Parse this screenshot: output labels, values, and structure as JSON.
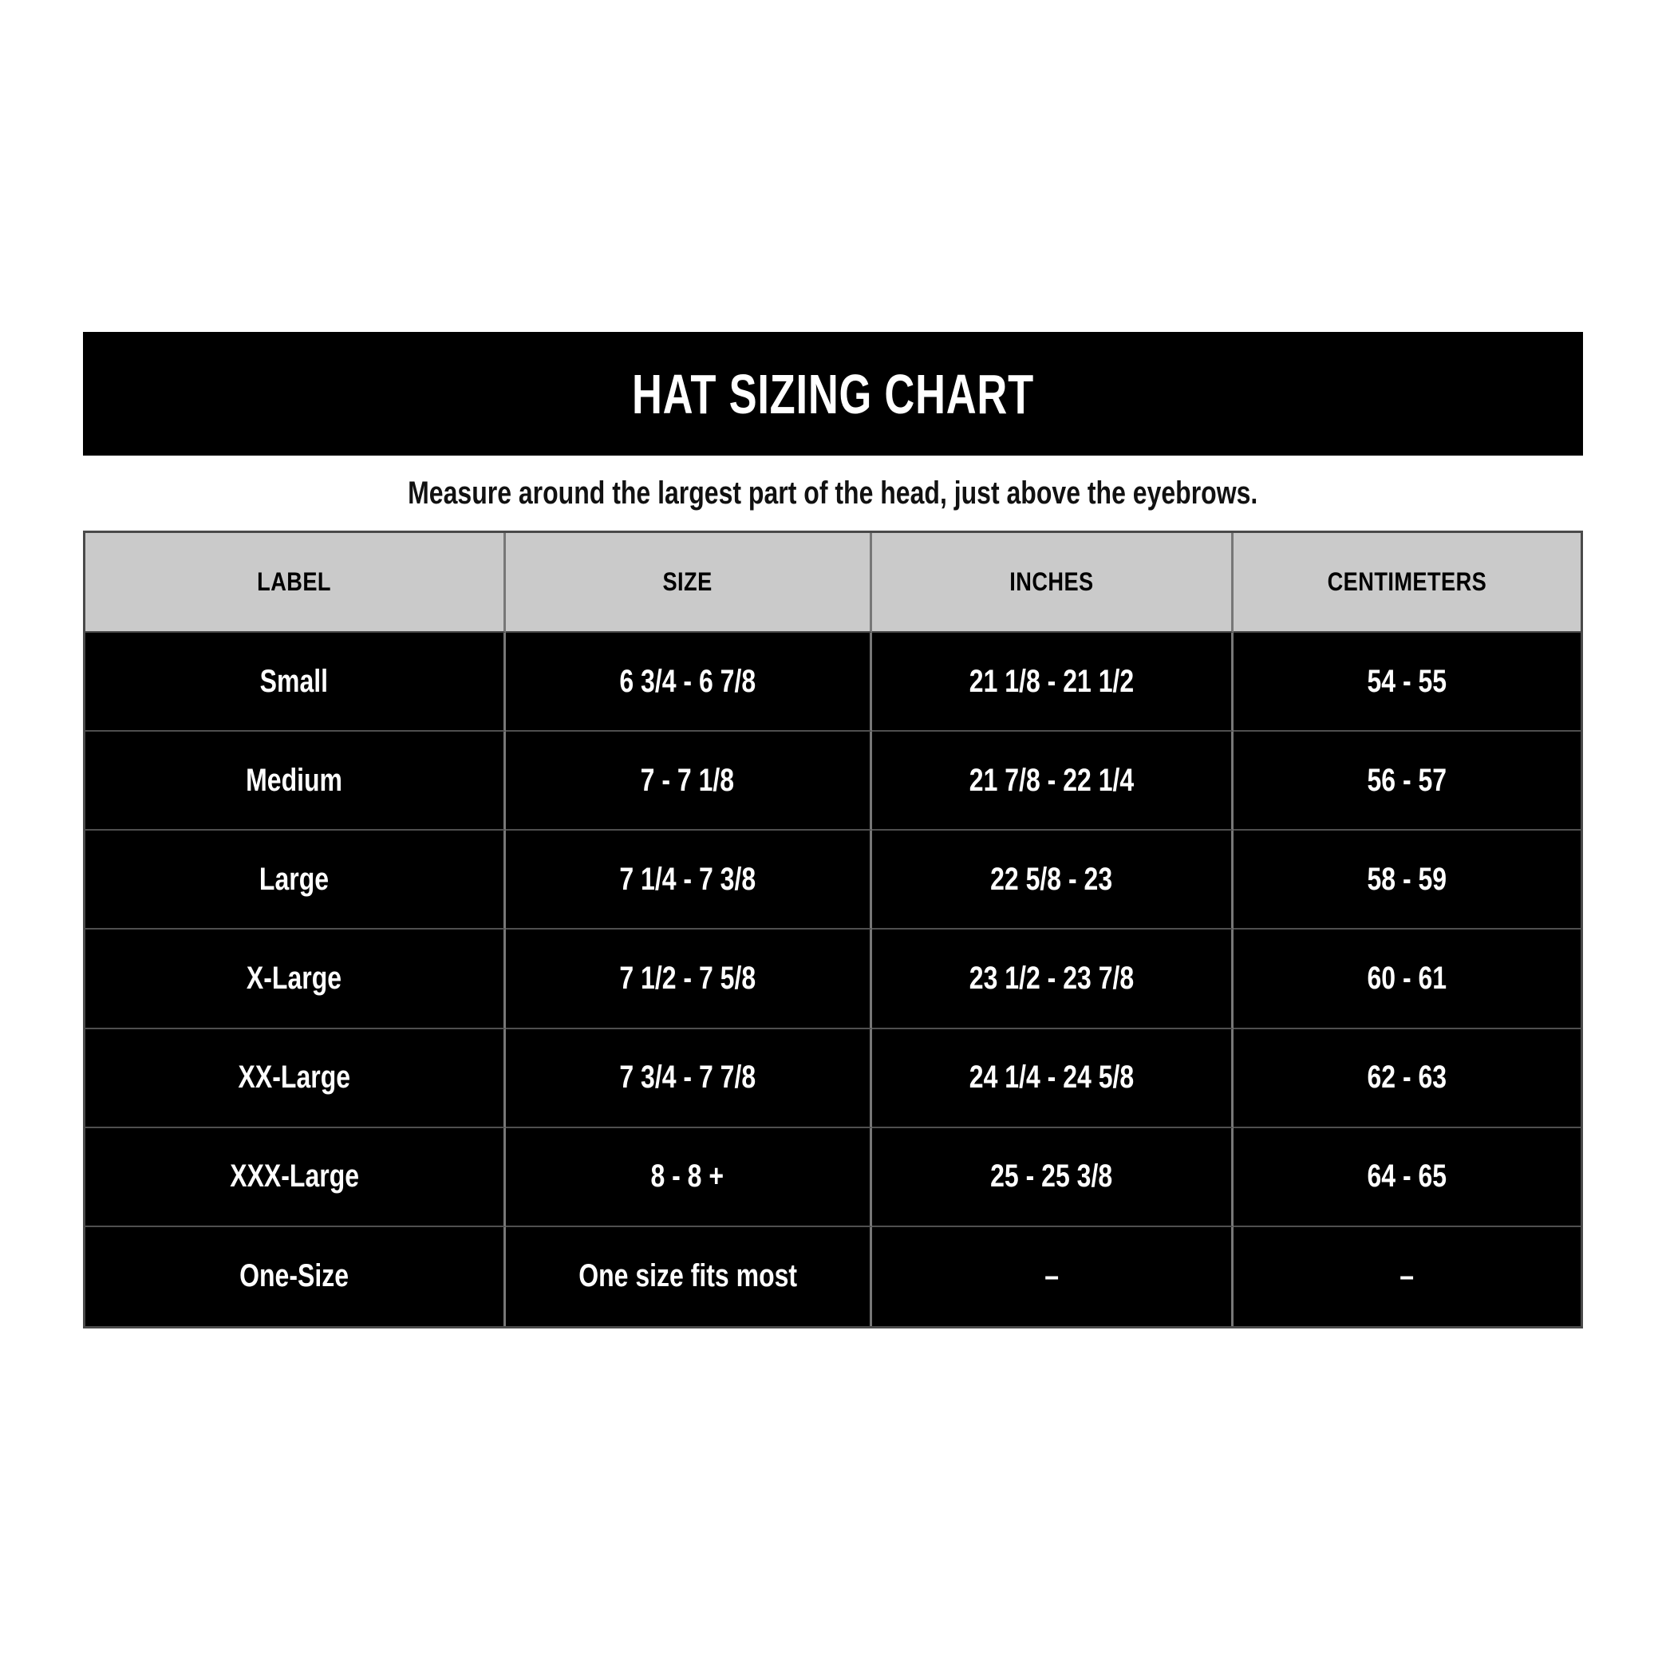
{
  "title": "HAT SIZING CHART",
  "subtitle": "Measure around the largest part of the head, just above the eyebrows.",
  "colors": {
    "banner_bg": "#000000",
    "banner_text": "#ffffff",
    "header_row_bg": "#cacaca",
    "header_row_text": "#000000",
    "data_row_bg": "#000000",
    "data_row_text": "#ffffff",
    "grid_line": "#777777",
    "page_bg": "#ffffff"
  },
  "chart_data": {
    "type": "table",
    "title": "HAT SIZING CHART",
    "columns": [
      "LABEL",
      "SIZE",
      "INCHES",
      "CENTIMETERS"
    ],
    "rows": [
      [
        "Small",
        "6 3/4 - 6 7/8",
        "21 1/8 - 21 1/2",
        "54 - 55"
      ],
      [
        "Medium",
        "7 - 7 1/8",
        "21 7/8 - 22 1/4",
        "56 - 57"
      ],
      [
        "Large",
        "7 1/4 - 7 3/8",
        "22 5/8 - 23",
        "58 - 59"
      ],
      [
        "X-Large",
        "7 1/2 - 7 5/8",
        "23 1/2 - 23 7/8",
        "60 - 61"
      ],
      [
        "XX-Large",
        "7 3/4 - 7 7/8",
        "24 1/4 - 24 5/8",
        "62 - 63"
      ],
      [
        "XXX-Large",
        "8 - 8 +",
        "25 - 25 3/8",
        "64 - 65"
      ],
      [
        "One-Size",
        "One size fits most",
        "–",
        "–"
      ]
    ]
  }
}
